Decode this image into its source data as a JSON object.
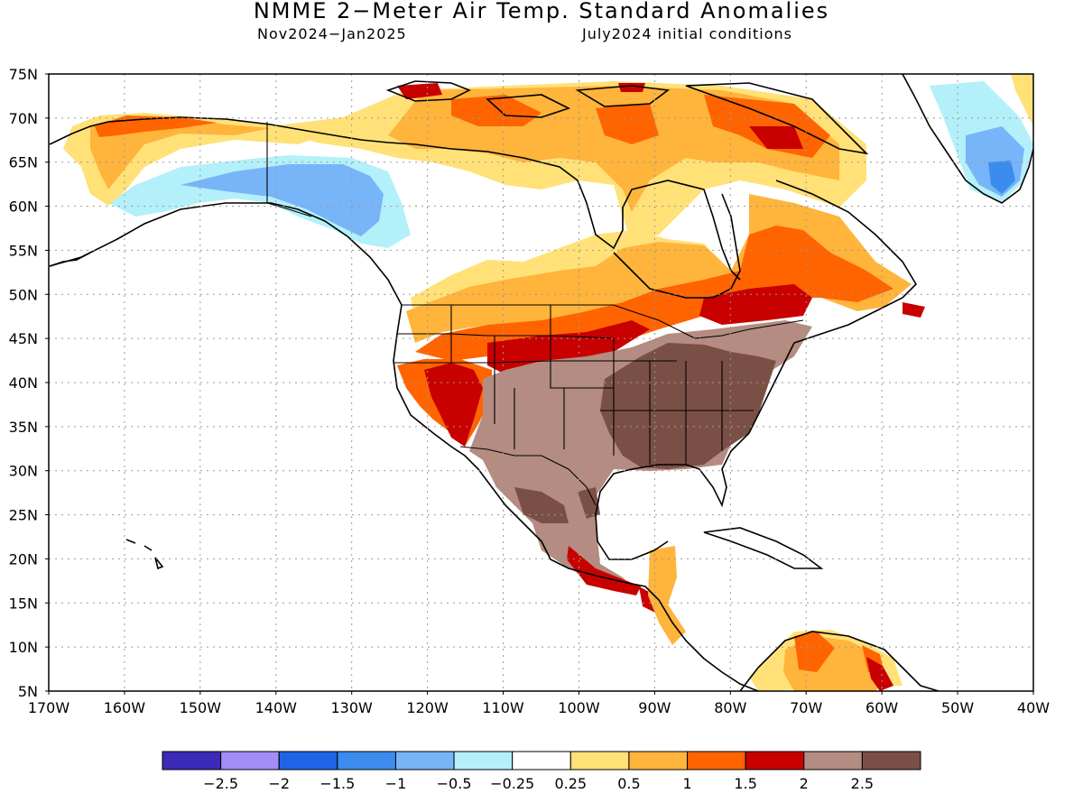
{
  "title": "NMME 2−Meter Air Temp. Standard Anomalies",
  "subtitle_left": "Nov2024−Jan2025",
  "subtitle_right": "July2024 initial conditions",
  "map": {
    "lat_labels": [
      "75N",
      "70N",
      "65N",
      "60N",
      "55N",
      "50N",
      "45N",
      "40N",
      "35N",
      "30N",
      "25N",
      "20N",
      "15N",
      "10N",
      "5N"
    ],
    "lon_labels": [
      "170W",
      "160W",
      "150W",
      "140W",
      "130W",
      "120W",
      "110W",
      "100W",
      "90W",
      "80W",
      "70W",
      "60W",
      "50W",
      "40W"
    ],
    "lat_range": [
      5,
      75
    ],
    "lon_range": [
      -170,
      -40
    ],
    "grid": true
  },
  "colorbar": {
    "colors": [
      "#3b2bb8",
      "#a28cf8",
      "#1e64e6",
      "#3c8cf0",
      "#78b4f8",
      "#b4f0fa",
      "#ffffff",
      "#ffe178",
      "#ffb43c",
      "#ff6400",
      "#c80000",
      "#b48c82",
      "#7a5046"
    ],
    "labels": [
      "−2.5",
      "−2",
      "−1.5",
      "−1",
      "−0.5",
      "−0.25",
      "0.25",
      "0.5",
      "1",
      "1.5",
      "2",
      "2.5"
    ]
  }
}
